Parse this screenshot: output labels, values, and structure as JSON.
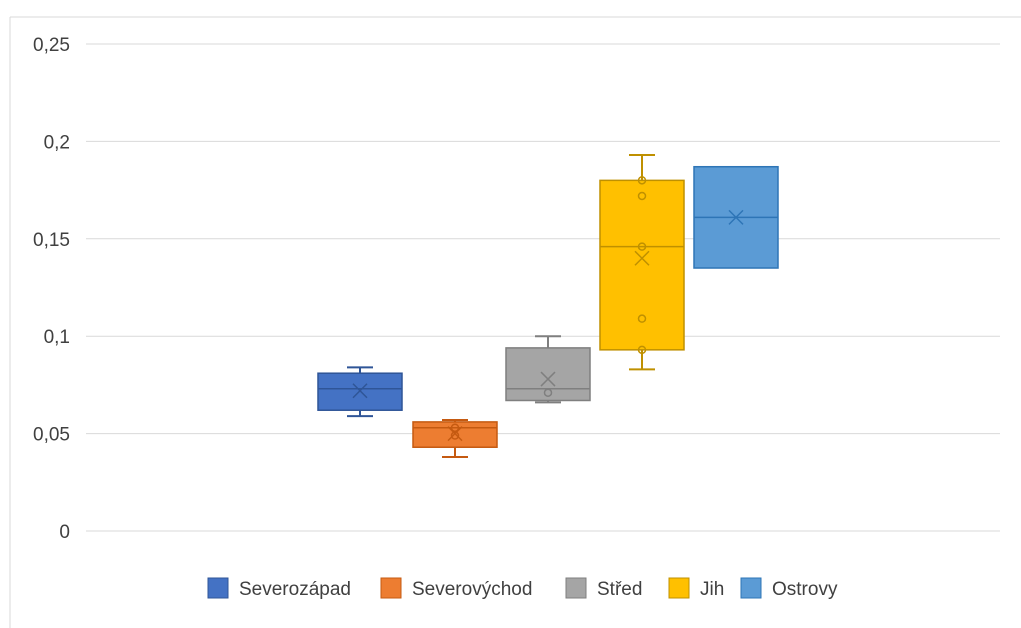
{
  "chart_data": {
    "type": "boxplot",
    "title": "",
    "xlabel": "",
    "ylabel": "",
    "ylim": [
      0,
      0.25
    ],
    "yticks": [
      {
        "value": 0,
        "label": "0"
      },
      {
        "value": 0.05,
        "label": "0,05"
      },
      {
        "value": 0.1,
        "label": "0,1"
      },
      {
        "value": 0.15,
        "label": "0,15"
      },
      {
        "value": 0.2,
        "label": "0,2"
      },
      {
        "value": 0.25,
        "label": "0,25"
      }
    ],
    "grid": true,
    "legend_position": "bottom",
    "series": [
      {
        "name": "Severozápad",
        "color": "#4472c4",
        "stroke": "#2f5597",
        "whisker_low": 0.059,
        "q1": 0.062,
        "median": 0.073,
        "q3": 0.081,
        "whisker_high": 0.084,
        "mean": 0.072,
        "points": []
      },
      {
        "name": "Severovýchod",
        "color": "#ed7d31",
        "stroke": "#c55a11",
        "whisker_low": 0.038,
        "q1": 0.043,
        "median": 0.053,
        "q3": 0.056,
        "whisker_high": 0.057,
        "mean": 0.05,
        "points": [
          0.053,
          0.049
        ]
      },
      {
        "name": "Střed",
        "color": "#a5a5a5",
        "stroke": "#7f7f7f",
        "whisker_low": 0.066,
        "q1": 0.067,
        "median": 0.073,
        "q3": 0.094,
        "whisker_high": 0.1,
        "mean": 0.078,
        "points": [
          0.071
        ]
      },
      {
        "name": "Jih",
        "color": "#ffc000",
        "stroke": "#bf9000",
        "whisker_low": 0.083,
        "q1": 0.093,
        "median": 0.146,
        "q3": 0.18,
        "whisker_high": 0.193,
        "mean": 0.14,
        "points": [
          0.18,
          0.172,
          0.146,
          0.109,
          0.093
        ]
      },
      {
        "name": "Ostrovy",
        "color": "#5b9bd5",
        "stroke": "#2e75b6",
        "whisker_low": null,
        "q1": 0.135,
        "median": 0.161,
        "q3": 0.187,
        "whisker_high": null,
        "mean": 0.161,
        "points": []
      }
    ]
  }
}
